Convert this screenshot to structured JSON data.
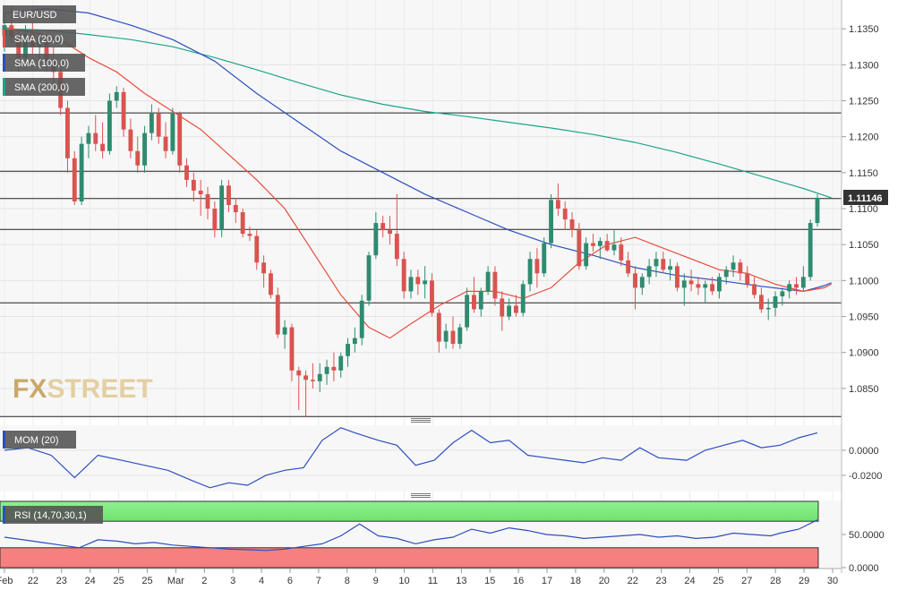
{
  "chart_data": {
    "type": "candlestick",
    "symbol": "EUR/USD",
    "last_price": "1.11146",
    "watermark": {
      "fx": "FX",
      "street": "STREET"
    },
    "price_axis": {
      "ylim": [
        1.081,
        1.139
      ],
      "ticks": [
        "1.1350",
        "1.1300",
        "1.1250",
        "1.1200",
        "1.1150",
        "1.1100",
        "1.1050",
        "1.1000",
        "1.0950",
        "1.0900",
        "1.0850"
      ]
    },
    "x_ticks": [
      "Feb",
      "22",
      "23",
      "24",
      "25",
      "25",
      "Mar",
      "2",
      "3",
      "4",
      "6",
      "7",
      "8",
      "9",
      "10",
      "11",
      "13",
      "15",
      "16",
      "17",
      "18",
      "20",
      "22",
      "23",
      "24",
      "25",
      "27",
      "28",
      "29",
      "30"
    ],
    "horizontal_levels": [
      1.1233,
      1.1152,
      1.1114,
      1.1071,
      1.0969,
      1.0811
    ],
    "indicators": {
      "sma20": {
        "label": "SMA (20,0)",
        "color": "#e74c3c"
      },
      "sma100": {
        "label": "SMA (100,0)",
        "color": "#2b4fbf"
      },
      "sma200": {
        "label": "SMA (200,0)",
        "color": "#1aa58a"
      }
    },
    "candles": [
      [
        1.134,
        1.1372,
        1.1318,
        1.1355
      ],
      [
        1.1355,
        1.1382,
        1.133,
        1.1338
      ],
      [
        1.1338,
        1.135,
        1.129,
        1.131
      ],
      [
        1.131,
        1.1355,
        1.13,
        1.1342
      ],
      [
        1.1342,
        1.136,
        1.1315,
        1.1325
      ],
      [
        1.1325,
        1.1345,
        1.13,
        1.1335
      ],
      [
        1.1335,
        1.134,
        1.129,
        1.1305
      ],
      [
        1.1305,
        1.1325,
        1.127,
        1.129
      ],
      [
        1.129,
        1.13,
        1.123,
        1.124
      ],
      [
        1.124,
        1.125,
        1.115,
        1.117
      ],
      [
        1.117,
        1.118,
        1.1105,
        1.111
      ],
      [
        1.111,
        1.12,
        1.1105,
        1.119
      ],
      [
        1.119,
        1.1215,
        1.117,
        1.1205
      ],
      [
        1.1205,
        1.123,
        1.118,
        1.119
      ],
      [
        1.119,
        1.122,
        1.117,
        1.118
      ],
      [
        1.118,
        1.126,
        1.1175,
        1.125
      ],
      [
        1.125,
        1.127,
        1.124,
        1.1262
      ],
      [
        1.1262,
        1.1268,
        1.12,
        1.121
      ],
      [
        1.121,
        1.1225,
        1.117,
        1.118
      ],
      [
        1.118,
        1.12,
        1.115,
        1.116
      ],
      [
        1.116,
        1.1215,
        1.115,
        1.1205
      ],
      [
        1.1205,
        1.1245,
        1.1195,
        1.1232
      ],
      [
        1.1232,
        1.124,
        1.119,
        1.12
      ],
      [
        1.12,
        1.122,
        1.117,
        1.118
      ],
      [
        1.118,
        1.124,
        1.1175,
        1.1232
      ],
      [
        1.1232,
        1.1235,
        1.115,
        1.116
      ],
      [
        1.116,
        1.117,
        1.113,
        1.114
      ],
      [
        1.114,
        1.115,
        1.111,
        1.1125
      ],
      [
        1.1125,
        1.114,
        1.109,
        1.112
      ],
      [
        1.112,
        1.113,
        1.1085,
        1.11
      ],
      [
        1.11,
        1.111,
        1.106,
        1.107
      ],
      [
        1.107,
        1.114,
        1.106,
        1.1132
      ],
      [
        1.1132,
        1.114,
        1.1095,
        1.1105
      ],
      [
        1.1105,
        1.1115,
        1.108,
        1.1095
      ],
      [
        1.1095,
        1.11,
        1.106,
        1.1065
      ],
      [
        1.1065,
        1.1075,
        1.1055,
        1.1062
      ],
      [
        1.1062,
        1.107,
        1.1015,
        1.1025
      ],
      [
        1.1025,
        1.1035,
        1.099,
        1.101
      ],
      [
        1.101,
        1.1015,
        1.0975,
        1.098
      ],
      [
        1.098,
        1.099,
        1.092,
        1.0925
      ],
      [
        1.0925,
        1.0945,
        1.0905,
        1.0935
      ],
      [
        1.0935,
        1.094,
        1.086,
        1.0875
      ],
      [
        1.0875,
        1.088,
        1.082,
        1.0868
      ],
      [
        1.0868,
        1.0875,
        1.081,
        1.0862
      ],
      [
        1.0862,
        1.0885,
        1.085,
        1.086
      ],
      [
        1.086,
        1.0885,
        1.0845,
        1.087
      ],
      [
        1.087,
        1.089,
        1.0855,
        1.088
      ],
      [
        1.088,
        1.09,
        1.086,
        1.0875
      ],
      [
        1.0875,
        1.09,
        1.0865,
        1.0895
      ],
      [
        1.0895,
        1.092,
        1.088,
        1.0912
      ],
      [
        1.0912,
        1.0935,
        1.09,
        1.092
      ],
      [
        1.092,
        1.098,
        1.091,
        1.0972
      ],
      [
        1.0972,
        1.104,
        1.0965,
        1.1035
      ],
      [
        1.1035,
        1.1095,
        1.103,
        1.108
      ],
      [
        1.108,
        1.109,
        1.106,
        1.107
      ],
      [
        1.107,
        1.109,
        1.105,
        1.1065
      ],
      [
        1.1065,
        1.112,
        1.102,
        1.103
      ],
      [
        1.103,
        1.104,
        1.0975,
        1.0985
      ],
      [
        1.0985,
        1.1015,
        1.0975,
        1.1005
      ],
      [
        1.1005,
        1.1015,
        1.098,
        1.0995
      ],
      [
        1.0995,
        1.102,
        1.0975,
        1.1
      ],
      [
        1.1,
        1.101,
        1.095,
        1.0955
      ],
      [
        1.0955,
        1.096,
        1.09,
        1.0915
      ],
      [
        1.0915,
        1.094,
        1.0905,
        1.093
      ],
      [
        1.093,
        1.095,
        1.0905,
        1.0912
      ],
      [
        1.0912,
        1.094,
        1.0905,
        1.0935
      ],
      [
        1.0935,
        1.099,
        1.093,
        1.098
      ],
      [
        1.098,
        1.1005,
        1.0955,
        1.096
      ],
      [
        1.096,
        1.099,
        1.095,
        1.0985
      ],
      [
        1.0985,
        1.102,
        1.098,
        1.1012
      ],
      [
        1.1012,
        1.102,
        1.0965,
        1.0975
      ],
      [
        1.0975,
        1.0985,
        1.093,
        1.095
      ],
      [
        1.095,
        1.0975,
        1.0945,
        1.0965
      ],
      [
        1.0965,
        1.098,
        1.095,
        1.0955
      ],
      [
        1.0955,
        1.1,
        1.095,
        1.0995
      ],
      [
        1.0995,
        1.104,
        1.0985,
        1.103
      ],
      [
        1.103,
        1.1045,
        1.099,
        1.101
      ],
      [
        1.101,
        1.106,
        1.1005,
        1.1052
      ],
      [
        1.1052,
        1.112,
        1.1045,
        1.1112
      ],
      [
        1.1112,
        1.1135,
        1.109,
        1.11
      ],
      [
        1.11,
        1.111,
        1.107,
        1.1085
      ],
      [
        1.1085,
        1.1095,
        1.106,
        1.107
      ],
      [
        1.107,
        1.108,
        1.1015,
        1.102
      ],
      [
        1.102,
        1.106,
        1.1015,
        1.1052
      ],
      [
        1.1052,
        1.1065,
        1.104,
        1.1048
      ],
      [
        1.1048,
        1.106,
        1.103,
        1.1055
      ],
      [
        1.1055,
        1.1065,
        1.104,
        1.1042
      ],
      [
        1.1042,
        1.107,
        1.1035,
        1.105
      ],
      [
        1.105,
        1.106,
        1.102,
        1.1028
      ],
      [
        1.1028,
        1.104,
        1.1005,
        1.101
      ],
      [
        1.101,
        1.102,
        1.096,
        1.099
      ],
      [
        1.099,
        1.101,
        1.098,
        1.1005
      ],
      [
        1.1005,
        1.103,
        1.0995,
        1.102
      ],
      [
        1.102,
        1.104,
        1.1005,
        1.103
      ],
      [
        1.103,
        1.104,
        1.101,
        1.1015
      ],
      [
        1.1015,
        1.103,
        1.1,
        1.102
      ],
      [
        1.102,
        1.1025,
        1.0985,
        1.099
      ],
      [
        1.099,
        1.101,
        1.0965,
        1.1
      ],
      [
        1.1,
        1.1015,
        1.0985,
        1.0995
      ],
      [
        1.0995,
        1.1005,
        1.098,
        1.099
      ],
      [
        1.099,
        1.1,
        1.097,
        1.0995
      ],
      [
        1.0995,
        1.1005,
        1.098,
        1.0985
      ],
      [
        1.0985,
        1.101,
        1.0975,
        1.1005
      ],
      [
        1.1005,
        1.102,
        1.0995,
        1.1015
      ],
      [
        1.1015,
        1.1035,
        1.1005,
        1.1025
      ],
      [
        1.1025,
        1.103,
        1.1,
        1.101
      ],
      [
        1.101,
        1.102,
        1.099,
        1.0995
      ],
      [
        1.0995,
        1.1005,
        1.0975,
        1.098
      ],
      [
        1.098,
        1.099,
        1.0955,
        1.096
      ],
      [
        1.096,
        1.0975,
        1.0945,
        1.0962
      ],
      [
        1.0962,
        1.0985,
        1.095,
        1.0978
      ],
      [
        1.0978,
        1.099,
        1.0965,
        1.0985
      ],
      [
        1.0985,
        1.1,
        1.0975,
        1.0995
      ],
      [
        1.0995,
        1.1005,
        1.098,
        1.099
      ],
      [
        1.099,
        1.102,
        1.0985,
        1.1005
      ],
      [
        1.1005,
        1.1085,
        1.1,
        1.108
      ],
      [
        1.108,
        1.112,
        1.1075,
        1.1115
      ]
    ],
    "sma20": [
      [
        0,
        1.1352
      ],
      [
        4,
        1.1345
      ],
      [
        8,
        1.1335
      ],
      [
        12,
        1.131
      ],
      [
        16,
        1.129
      ],
      [
        20,
        1.126
      ],
      [
        24,
        1.1235
      ],
      [
        28,
        1.121
      ],
      [
        32,
        1.1175
      ],
      [
        36,
        1.114
      ],
      [
        40,
        1.11
      ],
      [
        44,
        1.104
      ],
      [
        48,
        1.098
      ],
      [
        52,
        1.0935
      ],
      [
        55,
        1.092
      ],
      [
        58,
        1.094
      ],
      [
        62,
        1.0965
      ],
      [
        66,
        1.0985
      ],
      [
        70,
        1.0985
      ],
      [
        74,
        1.0975
      ],
      [
        78,
        1.099
      ],
      [
        82,
        1.1025
      ],
      [
        86,
        1.105
      ],
      [
        90,
        1.106
      ],
      [
        94,
        1.1045
      ],
      [
        98,
        1.103
      ],
      [
        102,
        1.1015
      ],
      [
        106,
        1.101
      ],
      [
        110,
        1.0995
      ],
      [
        114,
        1.0985
      ],
      [
        117,
        1.099
      ],
      [
        118,
        1.0995
      ]
    ],
    "sma100": [
      [
        0,
        1.1372
      ],
      [
        6,
        1.1378
      ],
      [
        12,
        1.1372
      ],
      [
        18,
        1.1355
      ],
      [
        24,
        1.1335
      ],
      [
        30,
        1.1305
      ],
      [
        36,
        1.126
      ],
      [
        42,
        1.122
      ],
      [
        48,
        1.118
      ],
      [
        54,
        1.115
      ],
      [
        60,
        1.112
      ],
      [
        66,
        1.1095
      ],
      [
        72,
        1.107
      ],
      [
        78,
        1.105
      ],
      [
        84,
        1.1035
      ],
      [
        90,
        1.1018
      ],
      [
        96,
        1.1007
      ],
      [
        102,
        1.1
      ],
      [
        108,
        1.0992
      ],
      [
        114,
        1.0985
      ],
      [
        117,
        1.0993
      ],
      [
        118,
        1.0997
      ]
    ],
    "sma200": [
      [
        0,
        1.135
      ],
      [
        6,
        1.1348
      ],
      [
        12,
        1.1342
      ],
      [
        18,
        1.1335
      ],
      [
        24,
        1.1325
      ],
      [
        30,
        1.131
      ],
      [
        36,
        1.1293
      ],
      [
        42,
        1.1275
      ],
      [
        48,
        1.1258
      ],
      [
        54,
        1.1245
      ],
      [
        60,
        1.1235
      ],
      [
        66,
        1.1228
      ],
      [
        72,
        1.122
      ],
      [
        78,
        1.1212
      ],
      [
        84,
        1.1203
      ],
      [
        90,
        1.1192
      ],
      [
        96,
        1.1178
      ],
      [
        102,
        1.1162
      ],
      [
        108,
        1.1145
      ],
      [
        114,
        1.1128
      ],
      [
        118,
        1.1115
      ]
    ],
    "momentum": {
      "label": "MOM (20)",
      "color": "#2b4fbf",
      "ylim": [
        -0.033,
        0.02
      ],
      "ticks": [
        "0.0000",
        "-0.0200"
      ],
      "values": [
        [
          0,
          0.0
        ],
        [
          5,
          0.002
        ],
        [
          10,
          -0.004
        ],
        [
          15,
          -0.022
        ],
        [
          20,
          -0.004
        ],
        [
          25,
          -0.008
        ],
        [
          30,
          -0.012
        ],
        [
          35,
          -0.016
        ],
        [
          40,
          -0.024
        ],
        [
          44,
          -0.03
        ],
        [
          48,
          -0.026
        ],
        [
          52,
          -0.028
        ],
        [
          56,
          -0.02
        ],
        [
          60,
          -0.016
        ],
        [
          64,
          -0.014
        ],
        [
          68,
          0.008
        ],
        [
          72,
          0.018
        ],
        [
          75,
          0.014
        ],
        [
          80,
          0.008
        ],
        [
          84,
          0.004
        ],
        [
          88,
          -0.012
        ],
        [
          92,
          -0.008
        ],
        [
          96,
          0.006
        ],
        [
          100,
          0.016
        ],
        [
          104,
          0.006
        ],
        [
          108,
          0.008
        ],
        [
          112,
          -0.004
        ],
        [
          116,
          -0.006
        ],
        [
          120,
          -0.008
        ],
        [
          124,
          -0.01
        ],
        [
          128,
          -0.006
        ],
        [
          132,
          -0.008
        ],
        [
          136,
          0.002
        ],
        [
          140,
          -0.006
        ],
        [
          146,
          -0.008
        ],
        [
          150,
          0.0
        ],
        [
          154,
          0.004
        ],
        [
          158,
          0.008
        ],
        [
          162,
          0.002
        ],
        [
          166,
          0.004
        ],
        [
          170,
          0.01
        ],
        [
          174,
          0.014
        ]
      ]
    },
    "rsi": {
      "label": "RSI (14,70,30,1)",
      "color": "#2b4fbf",
      "ylim": [
        0,
        100
      ],
      "overbought": 70,
      "oversold": 30,
      "ticks": [
        "50.0000",
        "0.0000"
      ],
      "values": [
        [
          0,
          46
        ],
        [
          4,
          42
        ],
        [
          8,
          38
        ],
        [
          12,
          34
        ],
        [
          16,
          30
        ],
        [
          20,
          42
        ],
        [
          24,
          40
        ],
        [
          28,
          36
        ],
        [
          32,
          38
        ],
        [
          36,
          34
        ],
        [
          40,
          32
        ],
        [
          44,
          30
        ],
        [
          48,
          28
        ],
        [
          52,
          27
        ],
        [
          56,
          26
        ],
        [
          60,
          28
        ],
        [
          64,
          32
        ],
        [
          68,
          36
        ],
        [
          72,
          48
        ],
        [
          76,
          66
        ],
        [
          80,
          48
        ],
        [
          84,
          44
        ],
        [
          88,
          36
        ],
        [
          92,
          42
        ],
        [
          96,
          46
        ],
        [
          100,
          58
        ],
        [
          104,
          52
        ],
        [
          108,
          60
        ],
        [
          112,
          56
        ],
        [
          116,
          50
        ],
        [
          120,
          48
        ],
        [
          124,
          44
        ],
        [
          128,
          46
        ],
        [
          132,
          48
        ],
        [
          136,
          50
        ],
        [
          140,
          46
        ],
        [
          144,
          48
        ],
        [
          148,
          44
        ],
        [
          152,
          46
        ],
        [
          156,
          52
        ],
        [
          160,
          50
        ],
        [
          164,
          48
        ],
        [
          166,
          52
        ],
        [
          170,
          58
        ],
        [
          174,
          72
        ]
      ]
    }
  }
}
